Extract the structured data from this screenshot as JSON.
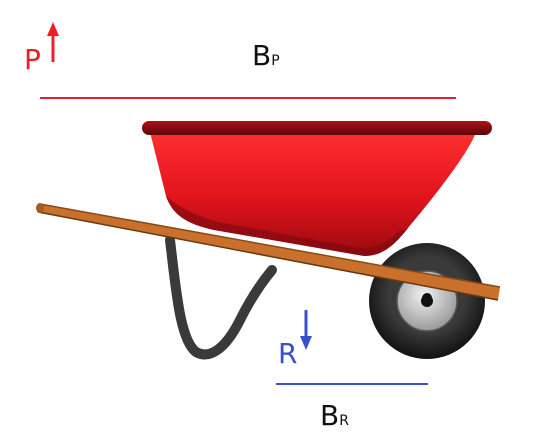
{
  "labels": {
    "effort_force": "P",
    "effort_arm": "B",
    "effort_arm_sub": "P",
    "load_force": "R",
    "load_arm": "B",
    "load_arm_sub": "R"
  },
  "colors": {
    "effort": "#e8202a",
    "load": "#3a4fc8",
    "barrow_body": "#e0121b",
    "handle": "#c8702c",
    "leg": "#3a3a3a",
    "tire": "#2a2a2a",
    "hub": "#c8c8c8"
  },
  "icons": {
    "effort_arrow": "arrow-up-icon",
    "load_arrow": "arrow-down-icon"
  }
}
